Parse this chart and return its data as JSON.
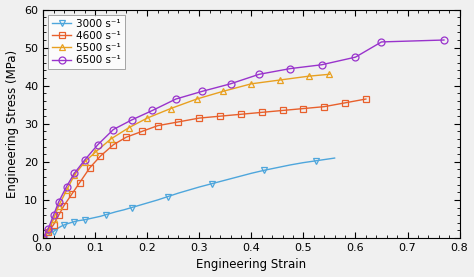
{
  "title": "",
  "xlabel": "Engineering Strain",
  "ylabel": "Engineering Stress (MPa)",
  "xlim": [
    0,
    0.8
  ],
  "ylim": [
    0,
    60
  ],
  "xticks": [
    0.0,
    0.1,
    0.2,
    0.3,
    0.4,
    0.5,
    0.6,
    0.7,
    0.8
  ],
  "yticks": [
    0,
    10,
    20,
    30,
    40,
    50,
    60
  ],
  "series": [
    {
      "label": "3000 s⁻¹",
      "color": "#4ea6dc",
      "marker": "v",
      "x": [
        0.0,
        0.005,
        0.01,
        0.015,
        0.02,
        0.025,
        0.03,
        0.035,
        0.04,
        0.045,
        0.05,
        0.055,
        0.06,
        0.065,
        0.07,
        0.075,
        0.08,
        0.09,
        0.1,
        0.11,
        0.12,
        0.13,
        0.14,
        0.155,
        0.17,
        0.185,
        0.2,
        0.22,
        0.24,
        0.26,
        0.28,
        0.3,
        0.325,
        0.35,
        0.375,
        0.4,
        0.425,
        0.45,
        0.475,
        0.5,
        0.525,
        0.55,
        0.56
      ],
      "y": [
        0.0,
        0.3,
        0.7,
        1.2,
        1.7,
        2.2,
        2.7,
        3.1,
        3.4,
        3.7,
        3.9,
        4.1,
        4.3,
        4.5,
        4.6,
        4.7,
        4.8,
        5.1,
        5.4,
        5.7,
        6.1,
        6.5,
        6.9,
        7.4,
        8.0,
        8.6,
        9.2,
        10.0,
        10.9,
        11.8,
        12.6,
        13.4,
        14.3,
        15.2,
        16.1,
        17.0,
        17.8,
        18.5,
        19.2,
        19.8,
        20.3,
        20.8,
        21.0
      ]
    },
    {
      "label": "4600 s⁻¹",
      "color": "#e8602c",
      "marker": "s",
      "x": [
        0.0,
        0.01,
        0.02,
        0.03,
        0.04,
        0.055,
        0.07,
        0.09,
        0.11,
        0.135,
        0.16,
        0.19,
        0.22,
        0.26,
        0.3,
        0.34,
        0.38,
        0.42,
        0.46,
        0.5,
        0.54,
        0.58,
        0.62
      ],
      "y": [
        0.0,
        1.5,
        3.5,
        6.0,
        8.5,
        11.5,
        14.5,
        18.5,
        21.5,
        24.5,
        26.5,
        28.0,
        29.5,
        30.5,
        31.5,
        32.0,
        32.5,
        33.0,
        33.5,
        34.0,
        34.5,
        35.5,
        36.5
      ]
    },
    {
      "label": "5500 s⁻¹",
      "color": "#e8a020",
      "marker": "^",
      "x": [
        0.0,
        0.01,
        0.02,
        0.03,
        0.045,
        0.06,
        0.08,
        0.1,
        0.13,
        0.165,
        0.2,
        0.245,
        0.295,
        0.345,
        0.4,
        0.455,
        0.51,
        0.55
      ],
      "y": [
        0.0,
        2.0,
        5.0,
        8.5,
        12.5,
        16.5,
        20.0,
        22.5,
        26.0,
        29.0,
        31.5,
        34.0,
        36.5,
        38.5,
        40.5,
        41.5,
        42.5,
        43.0
      ]
    },
    {
      "label": "6500 s⁻¹",
      "color": "#9933cc",
      "marker": "o",
      "x": [
        0.0,
        0.01,
        0.02,
        0.03,
        0.045,
        0.06,
        0.08,
        0.105,
        0.135,
        0.17,
        0.21,
        0.255,
        0.305,
        0.36,
        0.415,
        0.475,
        0.535,
        0.6,
        0.65,
        0.77
      ],
      "y": [
        0.0,
        2.5,
        6.0,
        9.5,
        13.5,
        17.0,
        20.5,
        24.5,
        28.5,
        31.0,
        33.5,
        36.5,
        38.5,
        40.5,
        43.0,
        44.5,
        45.5,
        47.5,
        51.5,
        52.0
      ]
    }
  ]
}
